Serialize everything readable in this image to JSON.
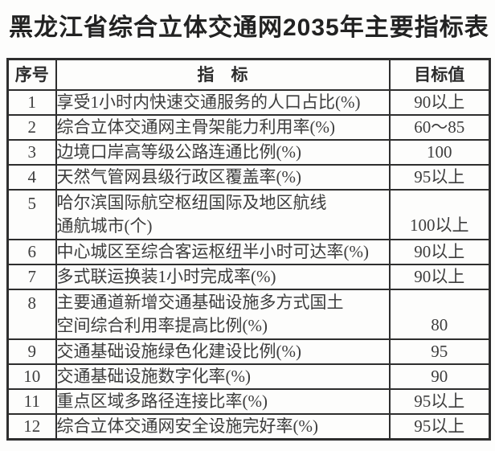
{
  "page": {
    "title": "黑龙江省综合立体交通网2035年主要指标表"
  },
  "colors": {
    "background": "#fdfdfc",
    "text": "#3d3d3d",
    "title_text": "#222222",
    "border": "#2e2e2e"
  },
  "table": {
    "headers": {
      "index": "序号",
      "indicator": "指　标",
      "target": "目标值"
    },
    "rows": [
      {
        "index": "1",
        "indicator": "享受1小时内快速交通服务的人口占比(%)",
        "target": "90以上",
        "tall": false
      },
      {
        "index": "2",
        "indicator": "综合立体交通网主骨架能力利用率(%)",
        "target": "60～85",
        "tall": false
      },
      {
        "index": "3",
        "indicator": "边境口岸高等级公路连通比例(%)",
        "target": "100",
        "tall": false
      },
      {
        "index": "4",
        "indicator": "天然气管网县级行政区覆盖率(%)",
        "target": "95以上",
        "tall": false
      },
      {
        "index": "5",
        "indicator": "哈尔滨国际航空枢纽国际及地区航线\n通航城市(个)",
        "target": "100以上",
        "tall": true
      },
      {
        "index": "6",
        "indicator": "中心城区至综合客运枢纽半小时可达率(%)",
        "target": "90以上",
        "tall": false
      },
      {
        "index": "7",
        "indicator": "多式联运换装1小时完成率(%)",
        "target": "90以上",
        "tall": false
      },
      {
        "index": "8",
        "indicator": "主要通道新增交通基础设施多方式国土\n空间综合利用率提高比例(%)",
        "target": "80",
        "tall": true
      },
      {
        "index": "9",
        "indicator": "交通基础设施绿色化建设比例(%)",
        "target": "95",
        "tall": false
      },
      {
        "index": "10",
        "indicator": "交通基础设施数字化率(%)",
        "target": "90",
        "tall": false
      },
      {
        "index": "11",
        "indicator": "重点区域多路径连接比率(%)",
        "target": "95以上",
        "tall": false
      },
      {
        "index": "12",
        "indicator": "综合立体交通网安全设施完好率(%)",
        "target": "95以上",
        "tall": false
      }
    ]
  }
}
